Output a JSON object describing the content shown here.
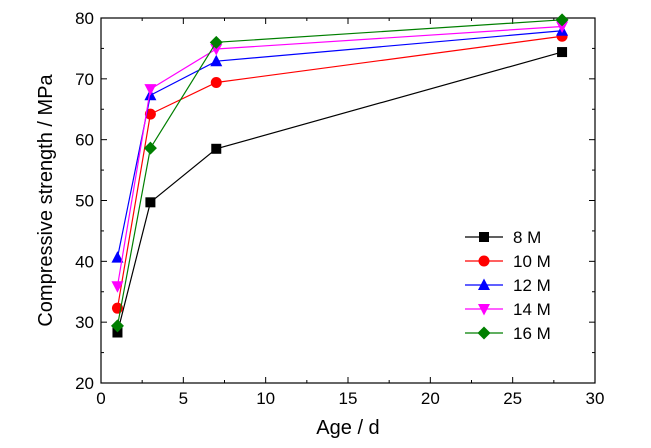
{
  "chart_data": {
    "type": "line",
    "xlabel": "Age / d",
    "ylabel": "Compressive strength / MPa",
    "xlim": [
      0,
      30
    ],
    "ylim": [
      20,
      80
    ],
    "xticks": [
      0,
      5,
      10,
      15,
      20,
      25,
      30
    ],
    "yticks": [
      20,
      30,
      40,
      50,
      60,
      70,
      80
    ],
    "grid": false,
    "legend_position": "bottom-right",
    "x": [
      1,
      3,
      7,
      28
    ],
    "series": [
      {
        "name": "8 M",
        "marker": "square",
        "color": "#000000",
        "values": [
          28.3,
          49.7,
          58.5,
          74.4
        ]
      },
      {
        "name": "10 M",
        "marker": "circle",
        "color": "#ff0000",
        "values": [
          32.3,
          64.2,
          69.4,
          77.0
        ]
      },
      {
        "name": "12 M",
        "marker": "triangle-up",
        "color": "#0000ff",
        "values": [
          40.6,
          67.3,
          72.9,
          77.9
        ]
      },
      {
        "name": "14 M",
        "marker": "triangle-down",
        "color": "#ff00ff",
        "values": [
          35.9,
          68.3,
          74.9,
          78.6
        ]
      },
      {
        "name": "16 M",
        "marker": "diamond",
        "color": "#007f00",
        "values": [
          29.4,
          58.6,
          76.0,
          79.7
        ]
      }
    ]
  }
}
